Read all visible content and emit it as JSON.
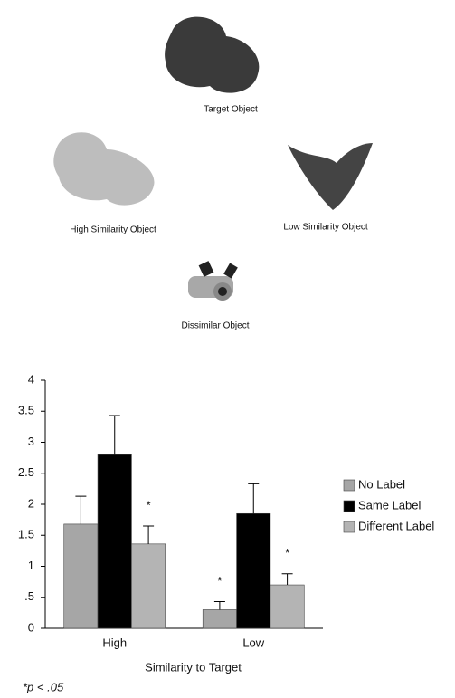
{
  "objects": {
    "target": "Target Object",
    "high": "High Similarity Object",
    "low": "Low Similarity Object",
    "dissimilar": "Dissimilar Object"
  },
  "chart_data": {
    "type": "bar",
    "categories": [
      "High",
      "Low"
    ],
    "series": [
      {
        "name": "No Label",
        "color": "#a6a6a6",
        "values": [
          1.68,
          0.3
        ],
        "errors": [
          0.45,
          0.13
        ],
        "significance": [
          null,
          "*"
        ]
      },
      {
        "name": "Same Label",
        "color": "#000000",
        "values": [
          2.8,
          1.85
        ],
        "errors": [
          0.63,
          0.48
        ],
        "significance": [
          null,
          null
        ]
      },
      {
        "name": "Different Label",
        "color": "#b4b4b4",
        "values": [
          1.36,
          0.7
        ],
        "errors": [
          0.29,
          0.18
        ],
        "significance": [
          "*",
          "*"
        ]
      }
    ],
    "ylim": [
      0,
      4
    ],
    "yticks": [
      0,
      {
        "value": 0.5,
        "label": ".5"
      },
      1,
      1.5,
      2,
      2.5,
      3,
      3.5,
      4
    ],
    "xlabel": "Similarity to Target",
    "note": "*p < .05",
    "legend": "right"
  }
}
